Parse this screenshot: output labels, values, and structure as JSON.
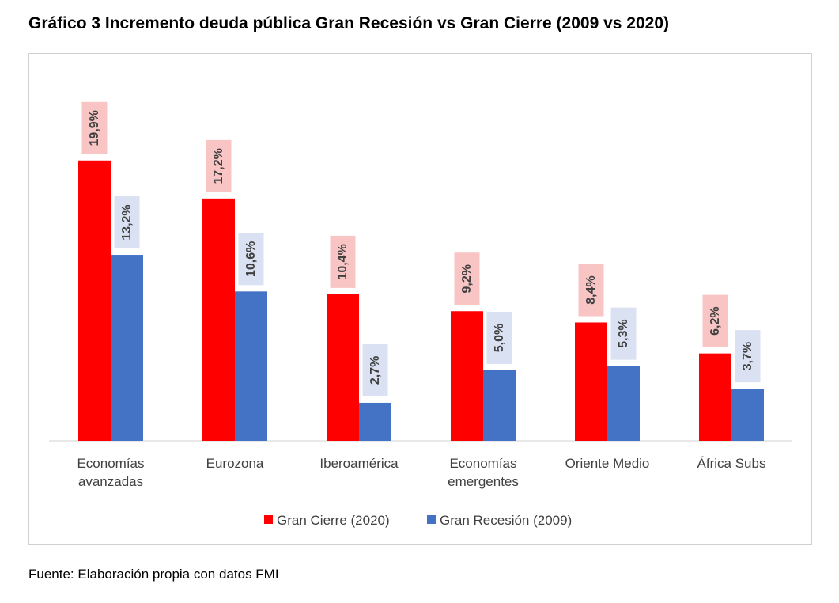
{
  "chart_data": {
    "type": "bar",
    "title": "Gráfico 3 Incremento deuda pública Gran Recesión vs Gran Cierre (2009 vs 2020)",
    "categories": [
      [
        "Economías",
        "avanzadas"
      ],
      [
        "Eurozona"
      ],
      [
        "Iberoamérica"
      ],
      [
        "Economías",
        "emergentes"
      ],
      [
        "Oriente Medio"
      ],
      [
        "África Subs"
      ]
    ],
    "series": [
      {
        "name": "Gran Cierre (2020)",
        "color": "#ff0000",
        "label_bg": "#f8c4c4",
        "values": [
          19.9,
          17.2,
          10.4,
          9.2,
          8.4,
          6.2
        ],
        "labels": [
          "19,9%",
          "17,2%",
          "10,4%",
          "9,2%",
          "8,4%",
          "6,2%"
        ]
      },
      {
        "name": "Gran Recesión (2009)",
        "color": "#4472c4",
        "label_bg": "#d9e1f2",
        "values": [
          13.2,
          10.6,
          2.7,
          5.0,
          5.3,
          3.7
        ],
        "labels": [
          "13,2%",
          "10,6%",
          "2,7%",
          "5,0%",
          "5,3%",
          "3,7%"
        ]
      }
    ],
    "xlabel": "",
    "ylabel": "",
    "ylim": [
      0,
      22
    ],
    "grid": false,
    "legend": "bottom",
    "data_labels": "rotated, above bars"
  },
  "source": "Fuente: Elaboración propia con datos FMI"
}
